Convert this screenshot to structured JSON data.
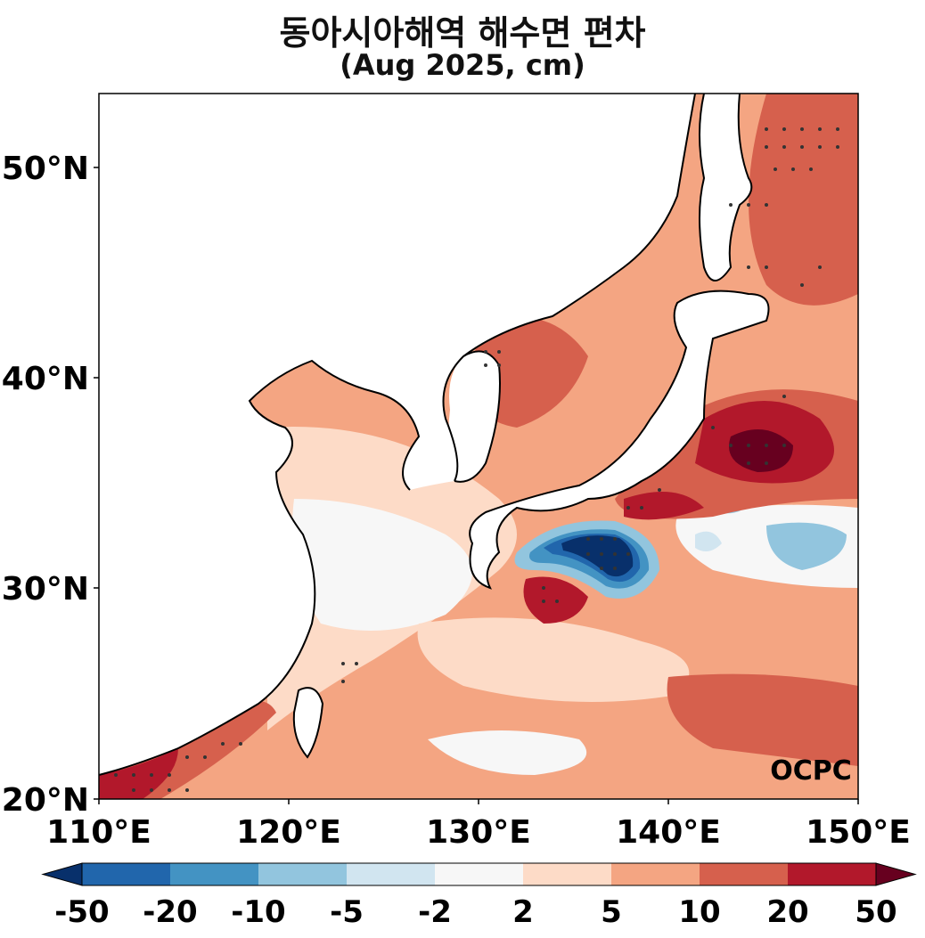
{
  "title": {
    "line1": "동아시아해역 해수면 편차",
    "line2": "(Aug 2025, cm)"
  },
  "map": {
    "lon_range": [
      110,
      150
    ],
    "lat_range": [
      20,
      53.5
    ],
    "x_ticks": [
      "110°E",
      "120°E",
      "130°E",
      "140°E",
      "150°E"
    ],
    "y_ticks": [
      "50°N",
      "40°N",
      "30°N",
      "20°N"
    ],
    "watermark": "OCPC"
  },
  "colorbar": {
    "levels": [
      "-50",
      "-20",
      "-10",
      "-5",
      "-2",
      "2",
      "5",
      "10",
      "20",
      "50"
    ],
    "colors": [
      "#08306b",
      "#2166ac",
      "#4393c3",
      "#92c5de",
      "#d1e5f0",
      "#f7f7f7",
      "#fddbc7",
      "#f4a582",
      "#d6604d",
      "#b2182b",
      "#67001f"
    ]
  }
}
